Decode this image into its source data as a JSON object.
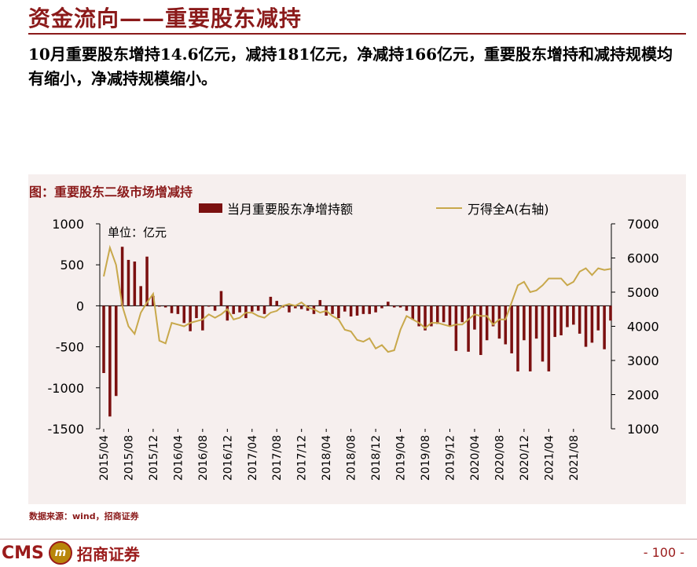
{
  "page": {
    "title": "资金流向——重要股东减持",
    "summary": "10月重要股东增持14.6亿元，减持181亿元，净减持166亿元，重要股东增持和减持规模均有缩小，净减持规模缩小。",
    "figure_caption": "图：重要股东二级市场增减持",
    "source": "数据来源：wind，招商证券",
    "logo_text": "CMS",
    "logo_mark": "m",
    "logo_cn": "招商证券",
    "page_number": "- 100 -"
  },
  "colors": {
    "brand": "#8B1A1A",
    "bar": "#7B1010",
    "line": "#C8A84B",
    "panel_bg": "#F6EFEE"
  },
  "chart_data": {
    "type": "bar+line",
    "unit_label": "单位：亿元",
    "left_axis": {
      "min": -1500,
      "max": 1000,
      "ticks": [
        1000,
        500,
        0,
        -500,
        -1000,
        -1500
      ]
    },
    "right_axis": {
      "min": 1000,
      "max": 7000,
      "ticks": [
        7000,
        6000,
        5000,
        4000,
        3000,
        2000,
        1000
      ]
    },
    "x_tick_labels": [
      "2015/04",
      "2015/08",
      "2015/12",
      "2016/04",
      "2016/08",
      "2016/12",
      "2017/04",
      "2017/08",
      "2017/12",
      "2018/04",
      "2018/08",
      "2018/12",
      "2019/04",
      "2019/08",
      "2019/12",
      "2020/04",
      "2020/08",
      "2020/12",
      "2021/04",
      "2021/08"
    ],
    "start_month": "2015/04",
    "series": [
      {
        "name": "当月重要股东净增持额",
        "type": "bar",
        "axis": "left",
        "values": [
          -820,
          -1350,
          -1100,
          720,
          560,
          540,
          240,
          600,
          120,
          -10,
          -20,
          -90,
          -100,
          -210,
          -310,
          -150,
          -300,
          -10,
          -60,
          180,
          -180,
          -100,
          -80,
          -150,
          -70,
          -60,
          -100,
          110,
          60,
          -20,
          -80,
          -30,
          -40,
          -60,
          -100,
          70,
          -120,
          -100,
          -150,
          -70,
          -130,
          -120,
          -100,
          -100,
          -80,
          -30,
          50,
          -20,
          -20,
          -60,
          -170,
          -250,
          -300,
          -250,
          -220,
          -200,
          -240,
          -550,
          -200,
          -560,
          -290,
          -600,
          -420,
          -250,
          -400,
          -470,
          -580,
          -800,
          -420,
          -800,
          -400,
          -680,
          -800,
          -380,
          -360,
          -260,
          -230,
          -340,
          -500,
          -450,
          -300,
          -530,
          -180
        ]
      },
      {
        "name": "万得全A(右轴)",
        "type": "line",
        "axis": "right",
        "values": [
          5460,
          6300,
          5800,
          4600,
          4000,
          3780,
          4400,
          4700,
          4950,
          3580,
          3500,
          4100,
          4050,
          4000,
          4100,
          4150,
          4200,
          4350,
          4250,
          4350,
          4500,
          4200,
          4250,
          4400,
          4400,
          4300,
          4250,
          4400,
          4450,
          4600,
          4650,
          4600,
          4700,
          4550,
          4500,
          4400,
          4450,
          4300,
          4200,
          3900,
          3850,
          3600,
          3550,
          3650,
          3350,
          3450,
          3250,
          3300,
          3900,
          4300,
          4200,
          4100,
          3950,
          4100,
          4100,
          4050,
          4000,
          4050,
          4050,
          4200,
          4350,
          4300,
          4300,
          4050,
          4200,
          4200,
          4700,
          5200,
          5300,
          5000,
          5050,
          5200,
          5400,
          5400,
          5400,
          5200,
          5300,
          5600,
          5700,
          5500,
          5700,
          5650,
          5680
        ]
      }
    ],
    "legend_position": "top",
    "grid": false
  }
}
